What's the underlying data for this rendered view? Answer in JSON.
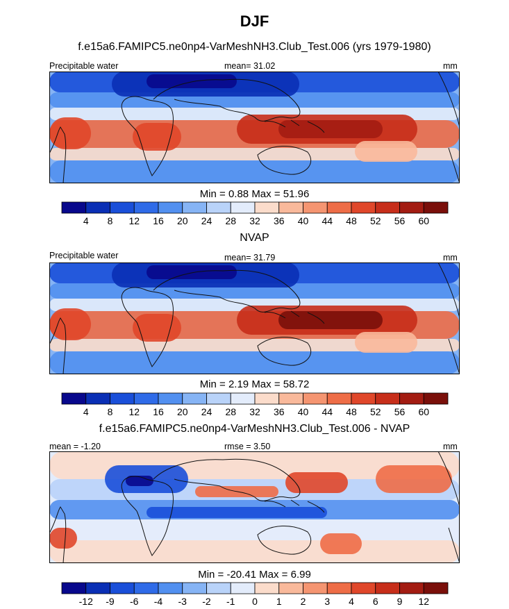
{
  "title": "DJF",
  "colors": {
    "abs_scale": [
      "#08088c",
      "#0a2fb5",
      "#1a4fd9",
      "#2f6be8",
      "#5290f0",
      "#86b4f5",
      "#b9d3f9",
      "#e3ecfb",
      "#fbdccb",
      "#f9b99b",
      "#f59571",
      "#ee6d47",
      "#e0472a",
      "#c72e1a",
      "#a31c12",
      "#7a0f0a"
    ],
    "diff_scale": [
      "#08088c",
      "#0a2fb5",
      "#1a4fd9",
      "#2f6be8",
      "#5290f0",
      "#86b4f5",
      "#b9d3f9",
      "#e3ecfb",
      "#fbdccb",
      "#f9b99b",
      "#f59571",
      "#ee6d47",
      "#e0472a",
      "#c72e1a",
      "#a31c12",
      "#7a0f0a"
    ],
    "land_outline": "#111111"
  },
  "panels": [
    {
      "title": "f.e15a6.FAMIPC5.ne0np4-VarMeshNH3.Club_Test.006 (yrs 1979-1980)",
      "left_label": "Precipitable water",
      "center_label": "mean=  31.02",
      "right_label": "mm",
      "stats": "Min =   0.88 Max =  51.96",
      "colorbar_labels": [
        "4",
        "8",
        "12",
        "16",
        "20",
        "24",
        "28",
        "32",
        "36",
        "40",
        "44",
        "48",
        "52",
        "56",
        "60"
      ]
    },
    {
      "title": "NVAP",
      "left_label": "Precipitable water",
      "center_label": "mean=  31.79",
      "right_label": "mm",
      "stats": "Min =   2.19 Max =  58.72",
      "colorbar_labels": [
        "4",
        "8",
        "12",
        "16",
        "20",
        "24",
        "28",
        "32",
        "36",
        "40",
        "44",
        "48",
        "52",
        "56",
        "60"
      ]
    },
    {
      "title": "f.e15a6.FAMIPC5.ne0np4-VarMeshNH3.Club_Test.006 - NVAP",
      "left_label": "mean =  -1.20",
      "center_label": "rmse =   3.50",
      "right_label": "mm",
      "stats": "Min = -20.41 Max =   6.99",
      "colorbar_labels": [
        "-12",
        "-9",
        "-6",
        "-4",
        "-3",
        "-2",
        "-1",
        "0",
        "1",
        "2",
        "3",
        "4",
        "6",
        "9",
        "12"
      ]
    }
  ],
  "chart_data": [
    {
      "type": "heatmap",
      "title": "f.e15a6.FAMIPC5.ne0np4-VarMeshNH3.Club_Test.006 (yrs 1979-1980)",
      "variable": "Precipitable water",
      "units": "mm",
      "mean": 31.02,
      "min": 0.88,
      "max": 51.96,
      "contour_levels": [
        4,
        8,
        12,
        16,
        20,
        24,
        28,
        32,
        36,
        40,
        44,
        48,
        52,
        56,
        60
      ]
    },
    {
      "type": "heatmap",
      "title": "NVAP",
      "variable": "Precipitable water",
      "units": "mm",
      "mean": 31.79,
      "min": 2.19,
      "max": 58.72,
      "contour_levels": [
        4,
        8,
        12,
        16,
        20,
        24,
        28,
        32,
        36,
        40,
        44,
        48,
        52,
        56,
        60
      ]
    },
    {
      "type": "heatmap",
      "title": "f.e15a6.FAMIPC5.ne0np4-VarMeshNH3.Club_Test.006 - NVAP",
      "units": "mm",
      "mean": -1.2,
      "rmse": 3.5,
      "min": -20.41,
      "max": 6.99,
      "contour_levels": [
        -12,
        -9,
        -6,
        -4,
        -3,
        -2,
        -1,
        0,
        1,
        2,
        3,
        4,
        6,
        9,
        12
      ]
    }
  ]
}
